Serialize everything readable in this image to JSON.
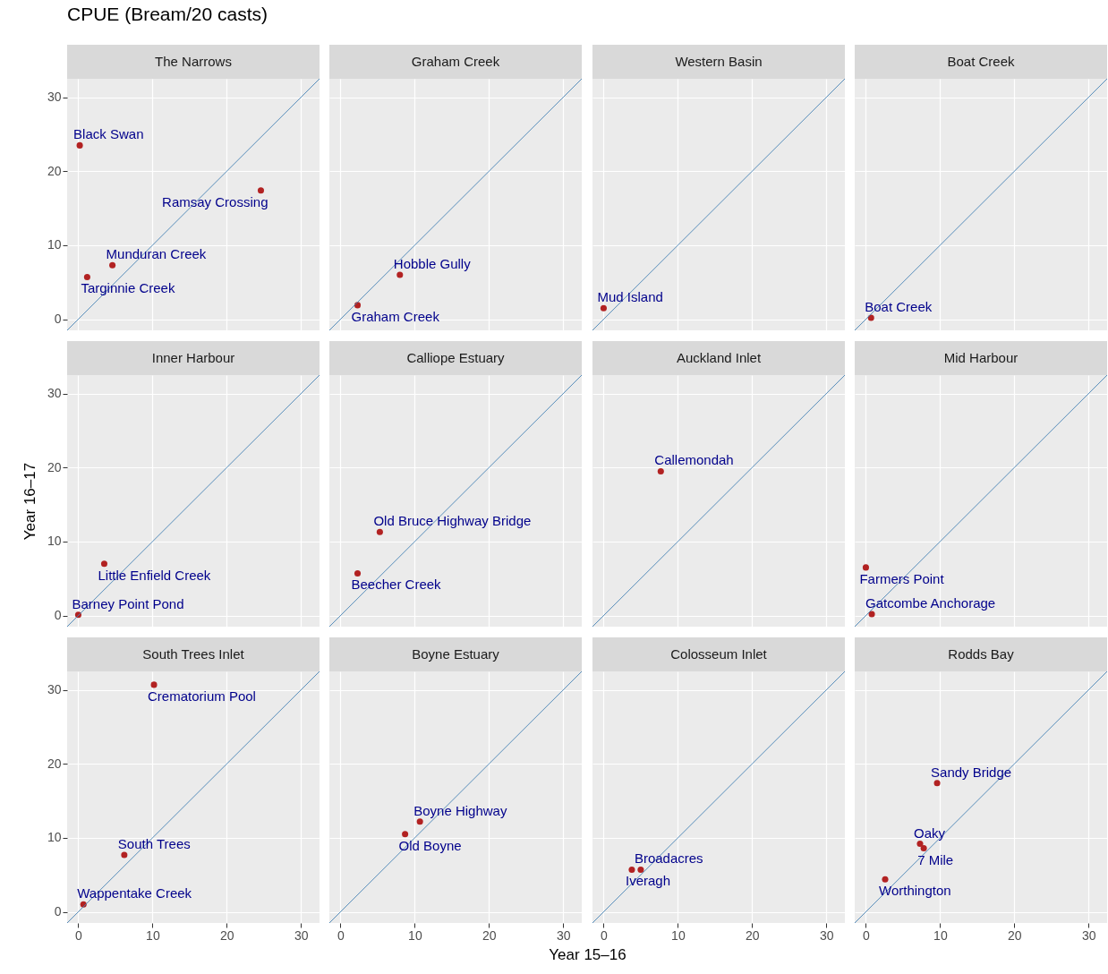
{
  "chart_data": [
    {
      "type": "other",
      "title": "CPUE (Bream/20 casts)"
    },
    {
      "type": "scatter",
      "title": "The Narrows",
      "xlim": [
        -1.5,
        32.5
      ],
      "ylim": [
        -1.5,
        32.5
      ],
      "xticks": [
        0,
        10,
        20,
        30
      ],
      "yticks": [
        0,
        10,
        20,
        30
      ],
      "grid": true,
      "tick_labels": "y",
      "series": [
        {
          "color": "#b22222",
          "marker": "circle",
          "x": [
            0.2,
            24.6,
            4.6,
            1.2
          ],
          "values": [
            23.5,
            17.4,
            7.3,
            5.7
          ]
        },
        {
          "type": "line",
          "color": "#4682b4",
          "x": [
            -1.5,
            32.5
          ],
          "values": [
            -1.5,
            32.5
          ]
        }
      ],
      "annotations": [
        {
          "text": "Black Swan",
          "x": 0.2,
          "y": 23.5
        },
        {
          "text": "Ramsay Crossing",
          "x": 24.6,
          "y": 17.4
        },
        {
          "text": "Munduran Creek",
          "x": 4.6,
          "y": 7.3
        },
        {
          "text": "Targinnie Creek",
          "x": 1.2,
          "y": 5.7
        }
      ]
    },
    {
      "type": "scatter",
      "title": "Graham Creek",
      "xlim": [
        -1.5,
        32.5
      ],
      "ylim": [
        -1.5,
        32.5
      ],
      "xticks": [
        0,
        10,
        20,
        30
      ],
      "yticks": [
        0,
        10,
        20,
        30
      ],
      "grid": true,
      "tick_labels": false,
      "series": [
        {
          "color": "#b22222",
          "marker": "circle",
          "x": [
            8.0,
            2.3
          ],
          "values": [
            6.0,
            1.9
          ]
        },
        {
          "type": "line",
          "color": "#4682b4",
          "x": [
            -1.5,
            32.5
          ],
          "values": [
            -1.5,
            32.5
          ]
        }
      ],
      "annotations": [
        {
          "text": "Hobble Gully",
          "x": 8.0,
          "y": 6.0
        },
        {
          "text": "Graham Creek",
          "x": 2.3,
          "y": 1.9
        }
      ]
    },
    {
      "type": "scatter",
      "title": "Western Basin",
      "xlim": [
        -1.5,
        32.5
      ],
      "ylim": [
        -1.5,
        32.5
      ],
      "xticks": [
        0,
        10,
        20,
        30
      ],
      "yticks": [
        0,
        10,
        20,
        30
      ],
      "grid": true,
      "tick_labels": false,
      "series": [
        {
          "color": "#b22222",
          "marker": "circle",
          "x": [
            0.0
          ],
          "values": [
            1.5
          ]
        },
        {
          "type": "line",
          "color": "#4682b4",
          "x": [
            -1.5,
            32.5
          ],
          "values": [
            -1.5,
            32.5
          ]
        }
      ],
      "annotations": [
        {
          "text": "Mud Island",
          "x": 0.0,
          "y": 1.5
        }
      ]
    },
    {
      "type": "scatter",
      "title": "Boat Creek",
      "xlim": [
        -1.5,
        32.5
      ],
      "ylim": [
        -1.5,
        32.5
      ],
      "xticks": [
        0,
        10,
        20,
        30
      ],
      "yticks": [
        0,
        10,
        20,
        30
      ],
      "grid": true,
      "tick_labels": false,
      "series": [
        {
          "color": "#b22222",
          "marker": "circle",
          "x": [
            0.7
          ],
          "values": [
            0.2
          ]
        },
        {
          "type": "line",
          "color": "#4682b4",
          "x": [
            -1.5,
            32.5
          ],
          "values": [
            -1.5,
            32.5
          ]
        }
      ],
      "annotations": [
        {
          "text": "Boat Creek",
          "x": 0.7,
          "y": 0.2
        }
      ]
    },
    {
      "type": "scatter",
      "title": "Inner Harbour",
      "ylabel": "Year 16–17",
      "xlim": [
        -1.5,
        32.5
      ],
      "ylim": [
        -1.5,
        32.5
      ],
      "xticks": [
        0,
        10,
        20,
        30
      ],
      "yticks": [
        0,
        10,
        20,
        30
      ],
      "grid": true,
      "tick_labels": "y",
      "series": [
        {
          "color": "#b22222",
          "marker": "circle",
          "x": [
            0.0,
            3.5
          ],
          "values": [
            0.1,
            7.0
          ]
        },
        {
          "type": "line",
          "color": "#4682b4",
          "x": [
            -1.5,
            32.5
          ],
          "values": [
            -1.5,
            32.5
          ]
        }
      ],
      "annotations": [
        {
          "text": "Barney Point Pond",
          "x": 0.0,
          "y": 0.1
        },
        {
          "text": "Little Enfield Creek",
          "x": 3.5,
          "y": 7.0
        }
      ]
    },
    {
      "type": "scatter",
      "title": "Calliope Estuary",
      "xlim": [
        -1.5,
        32.5
      ],
      "ylim": [
        -1.5,
        32.5
      ],
      "xticks": [
        0,
        10,
        20,
        30
      ],
      "yticks": [
        0,
        10,
        20,
        30
      ],
      "grid": true,
      "tick_labels": false,
      "series": [
        {
          "color": "#b22222",
          "marker": "circle",
          "x": [
            5.3,
            2.3
          ],
          "values": [
            11.3,
            5.7
          ]
        },
        {
          "type": "line",
          "color": "#4682b4",
          "x": [
            -1.5,
            32.5
          ],
          "values": [
            -1.5,
            32.5
          ]
        }
      ],
      "annotations": [
        {
          "text": "Old Bruce Highway Bridge",
          "x": 5.3,
          "y": 11.3
        },
        {
          "text": "Beecher Creek",
          "x": 2.3,
          "y": 5.7
        }
      ]
    },
    {
      "type": "scatter",
      "title": "Auckland Inlet",
      "xlim": [
        -1.5,
        32.5
      ],
      "ylim": [
        -1.5,
        32.5
      ],
      "xticks": [
        0,
        10,
        20,
        30
      ],
      "yticks": [
        0,
        10,
        20,
        30
      ],
      "grid": true,
      "tick_labels": false,
      "series": [
        {
          "color": "#b22222",
          "marker": "circle",
          "x": [
            7.7
          ],
          "values": [
            19.5
          ]
        },
        {
          "type": "line",
          "color": "#4682b4",
          "x": [
            -1.5,
            32.5
          ],
          "values": [
            -1.5,
            32.5
          ]
        }
      ],
      "annotations": [
        {
          "text": "Callemondah",
          "x": 7.7,
          "y": 19.5
        }
      ]
    },
    {
      "type": "scatter",
      "title": "Mid Harbour",
      "xlim": [
        -1.5,
        32.5
      ],
      "ylim": [
        -1.5,
        32.5
      ],
      "xticks": [
        0,
        10,
        20,
        30
      ],
      "yticks": [
        0,
        10,
        20,
        30
      ],
      "grid": true,
      "tick_labels": false,
      "series": [
        {
          "color": "#b22222",
          "marker": "circle",
          "x": [
            0.8,
            0.0
          ],
          "values": [
            0.2,
            6.5
          ]
        },
        {
          "type": "line",
          "color": "#4682b4",
          "x": [
            -1.5,
            32.5
          ],
          "values": [
            -1.5,
            32.5
          ]
        }
      ],
      "annotations": [
        {
          "text": "Gatcombe Anchorage",
          "x": 0.8,
          "y": 0.2
        },
        {
          "text": "Farmers Point",
          "x": 0.0,
          "y": 6.5
        }
      ]
    },
    {
      "type": "scatter",
      "title": "South Trees Inlet",
      "xlim": [
        -1.5,
        32.5
      ],
      "ylim": [
        -1.5,
        32.5
      ],
      "xticks": [
        0,
        10,
        20,
        30
      ],
      "yticks": [
        0,
        10,
        20,
        30
      ],
      "grid": true,
      "series": [
        {
          "color": "#b22222",
          "marker": "circle",
          "x": [
            0.7,
            10.2,
            6.2
          ],
          "values": [
            1.0,
            30.7,
            7.7
          ]
        },
        {
          "type": "line",
          "color": "#4682b4",
          "x": [
            -1.5,
            32.5
          ],
          "values": [
            -1.5,
            32.5
          ]
        }
      ],
      "annotations": [
        {
          "text": "Wappentake Creek",
          "x": 0.7,
          "y": 1.0
        },
        {
          "text": "Crematorium Pool",
          "x": 10.2,
          "y": 30.7
        },
        {
          "text": "South Trees",
          "x": 6.2,
          "y": 7.7
        }
      ]
    },
    {
      "type": "scatter",
      "title": "Boyne Estuary",
      "xlabel": "Year 15–16",
      "xlim": [
        -1.5,
        32.5
      ],
      "ylim": [
        -1.5,
        32.5
      ],
      "xticks": [
        0,
        10,
        20,
        30
      ],
      "yticks": [
        0,
        10,
        20,
        30
      ],
      "grid": true,
      "tick_labels": "x",
      "series": [
        {
          "color": "#b22222",
          "marker": "circle",
          "x": [
            10.7,
            8.7
          ],
          "values": [
            12.2,
            10.5
          ]
        },
        {
          "type": "line",
          "color": "#4682b4",
          "x": [
            -1.5,
            32.5
          ],
          "values": [
            -1.5,
            32.5
          ]
        }
      ],
      "annotations": [
        {
          "text": "Boyne Highway",
          "x": 10.7,
          "y": 12.2
        },
        {
          "text": "Old Boyne",
          "x": 8.7,
          "y": 10.5
        }
      ]
    },
    {
      "type": "scatter",
      "title": "Colosseum Inlet",
      "xlim": [
        -1.5,
        32.5
      ],
      "ylim": [
        -1.5,
        32.5
      ],
      "xticks": [
        0,
        10,
        20,
        30
      ],
      "yticks": [
        0,
        10,
        20,
        30
      ],
      "grid": true,
      "tick_labels": "x",
      "series": [
        {
          "color": "#b22222",
          "marker": "circle",
          "x": [
            5.0,
            3.8
          ],
          "values": [
            5.7,
            5.7
          ]
        },
        {
          "type": "line",
          "color": "#4682b4",
          "x": [
            -1.5,
            32.5
          ],
          "values": [
            -1.5,
            32.5
          ]
        }
      ],
      "annotations": [
        {
          "text": "Broadacres",
          "x": 5.0,
          "y": 5.7
        },
        {
          "text": "Iveragh",
          "x": 3.8,
          "y": 5.7
        }
      ]
    },
    {
      "type": "scatter",
      "title": "Rodds Bay",
      "xlim": [
        -1.5,
        32.5
      ],
      "ylim": [
        -1.5,
        32.5
      ],
      "xticks": [
        0,
        10,
        20,
        30
      ],
      "yticks": [
        0,
        10,
        20,
        30
      ],
      "grid": true,
      "tick_labels": "x",
      "series": [
        {
          "color": "#b22222",
          "marker": "circle",
          "x": [
            7.3,
            7.8,
            9.6,
            2.6
          ],
          "values": [
            9.2,
            8.6,
            17.4,
            4.4
          ]
        },
        {
          "type": "line",
          "color": "#4682b4",
          "x": [
            -1.5,
            32.5
          ],
          "values": [
            -1.5,
            32.5
          ]
        }
      ],
      "annotations": [
        {
          "text": "Oaky",
          "x": 7.3,
          "y": 9.2
        },
        {
          "text": "7 Mile",
          "x": 7.8,
          "y": 8.6
        },
        {
          "text": "Sandy Bridge",
          "x": 9.6,
          "y": 17.4
        },
        {
          "text": "Worthington",
          "x": 2.6,
          "y": 4.4
        }
      ]
    }
  ]
}
